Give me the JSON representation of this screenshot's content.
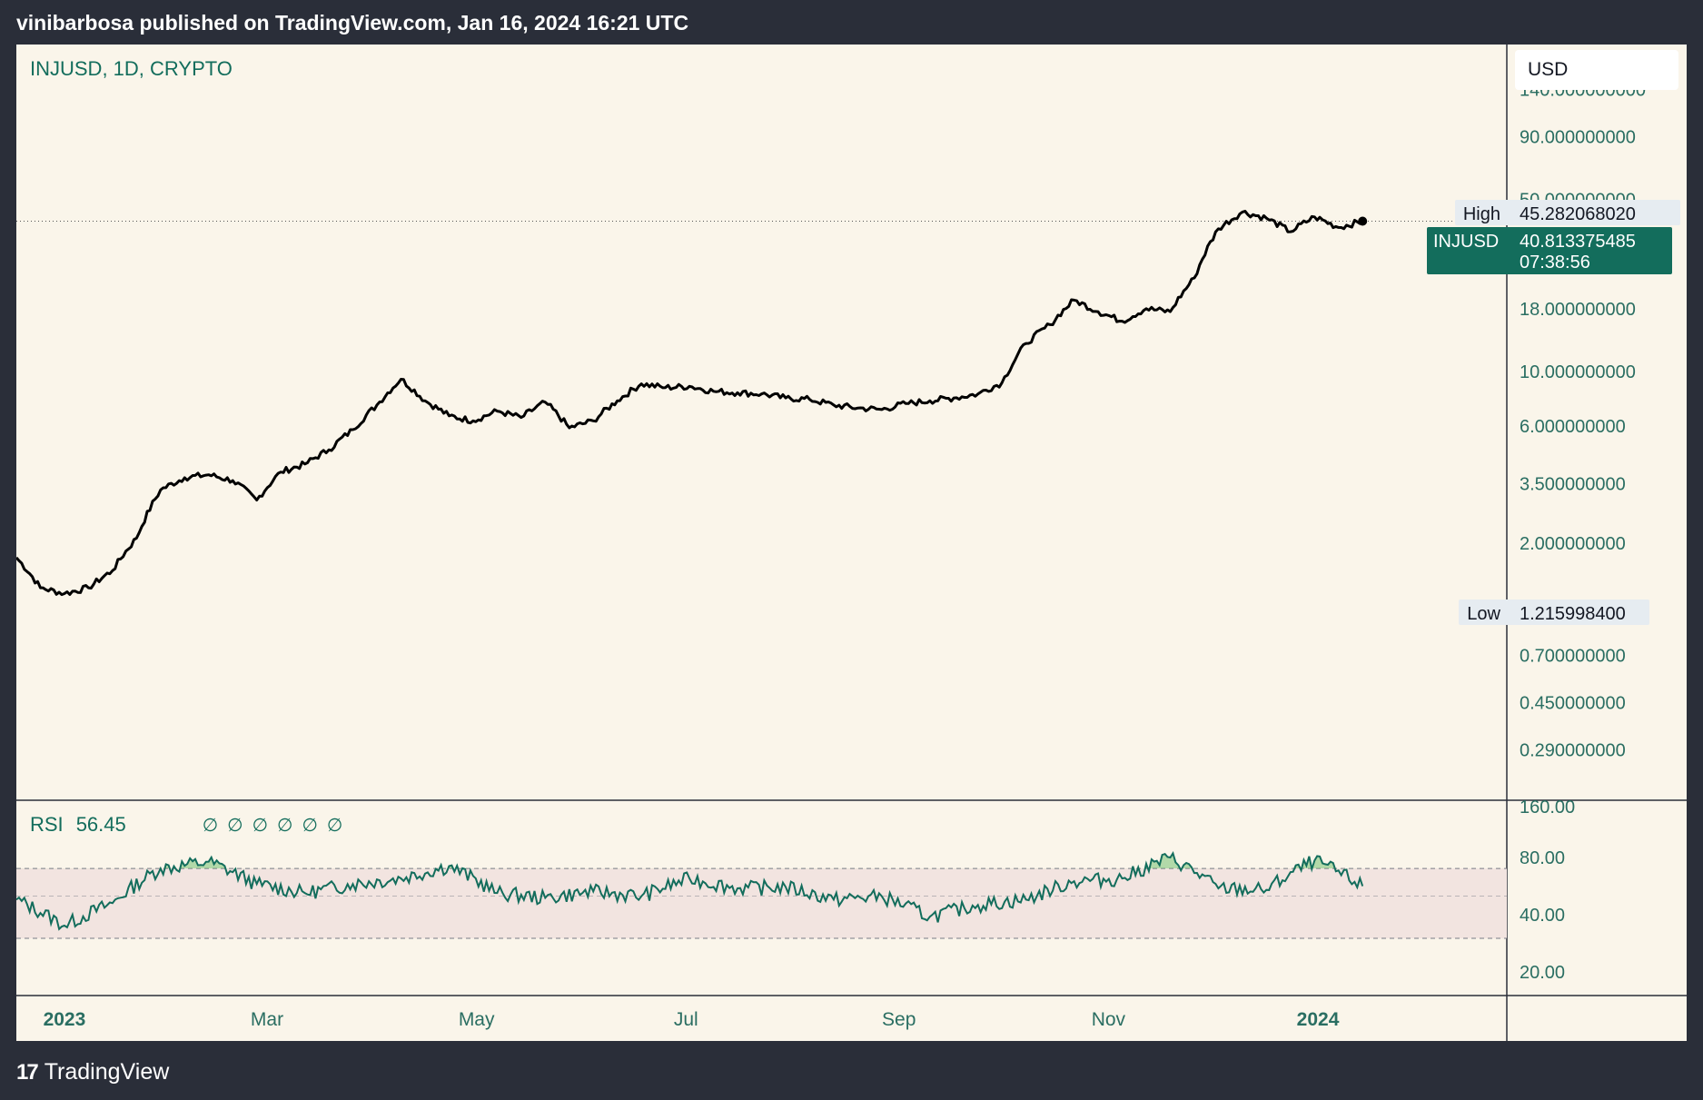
{
  "header": {
    "published": "vinibarbosa published on TradingView.com, Jan 16, 2024 16:21 UTC"
  },
  "legend": {
    "symbol": "INJUSD, 1D, CRYPTO"
  },
  "currency_button": "USD",
  "price_scale": {
    "ticks": [
      "140.000000000",
      "90.000000000",
      "50.000000000",
      "18.000000000",
      "10.000000000",
      "6.000000000",
      "3.500000000",
      "2.000000000",
      "0.700000000",
      "0.450000000",
      "0.290000000"
    ],
    "high_label": "High",
    "high_value": "45.282068020",
    "last_label": "INJUSD",
    "last_value": "40.813375485",
    "countdown": "07:38:56",
    "low_label": "Low",
    "low_value": "1.215998400"
  },
  "rsi": {
    "label": "RSI",
    "value": "56.45",
    "icons": [
      "∅",
      "∅",
      "∅",
      "∅",
      "∅",
      "∅"
    ],
    "ticks": [
      "160.00",
      "80.00",
      "40.00",
      "20.00"
    ]
  },
  "time_axis": {
    "ticks": [
      {
        "label": "2023",
        "bold": true
      },
      {
        "label": "Mar",
        "bold": false
      },
      {
        "label": "May",
        "bold": false
      },
      {
        "label": "Jul",
        "bold": false
      },
      {
        "label": "Sep",
        "bold": false
      },
      {
        "label": "Nov",
        "bold": false
      },
      {
        "label": "2024",
        "bold": true
      }
    ]
  },
  "footer": {
    "brand": "TradingView",
    "logo_mark": "17"
  },
  "colors": {
    "accent": "#136d5c",
    "line": "#000000",
    "rsi_line": "#136d5c",
    "rsi_band": "#f2e4e0",
    "background": "#faf5ea",
    "frame": "#2a2e39"
  },
  "chart_data": [
    {
      "type": "line",
      "title": "INJUSD, 1D, CRYPTO",
      "scale": "log",
      "ylim": [
        0.2,
        180
      ],
      "x": [
        "2022-12-18",
        "2022-12-25",
        "2023-01-01",
        "2023-01-08",
        "2023-01-15",
        "2023-01-22",
        "2023-01-29",
        "2023-02-05",
        "2023-02-12",
        "2023-02-19",
        "2023-02-26",
        "2023-03-05",
        "2023-03-12",
        "2023-03-19",
        "2023-03-26",
        "2023-04-02",
        "2023-04-09",
        "2023-04-16",
        "2023-04-23",
        "2023-04-30",
        "2023-05-07",
        "2023-05-14",
        "2023-05-21",
        "2023-05-28",
        "2023-06-04",
        "2023-06-11",
        "2023-06-18",
        "2023-06-25",
        "2023-07-02",
        "2023-07-09",
        "2023-07-16",
        "2023-07-23",
        "2023-07-30",
        "2023-08-06",
        "2023-08-13",
        "2023-08-20",
        "2023-08-27",
        "2023-09-03",
        "2023-09-10",
        "2023-09-17",
        "2023-09-24",
        "2023-10-01",
        "2023-10-08",
        "2023-10-15",
        "2023-10-22",
        "2023-10-29",
        "2023-11-05",
        "2023-11-12",
        "2023-11-19",
        "2023-11-26",
        "2023-12-03",
        "2023-12-10",
        "2023-12-17",
        "2023-12-24",
        "2023-12-31",
        "2024-01-07",
        "2024-01-14"
      ],
      "series": [
        {
          "name": "INJUSD",
          "values": [
            1.75,
            1.32,
            1.25,
            1.32,
            1.55,
            2.1,
            3.3,
            3.7,
            3.8,
            3.6,
            3.0,
            3.9,
            4.2,
            4.8,
            5.8,
            7.3,
            9.3,
            7.6,
            6.6,
            6.3,
            6.9,
            6.5,
            7.5,
            5.9,
            6.3,
            7.6,
            8.9,
            8.6,
            8.7,
            8.3,
            8.2,
            8.1,
            7.8,
            7.7,
            7.3,
            7.1,
            7.0,
            7.4,
            7.6,
            7.8,
            8.1,
            9.0,
            13.0,
            15.5,
            19.5,
            17.5,
            16.0,
            18.0,
            17.5,
            24.0,
            38.0,
            44.5,
            42.0,
            37.0,
            42.5,
            38.5,
            40.81
          ]
        }
      ],
      "high": 45.28206802,
      "low": 1.2159984,
      "last": 40.813375485
    },
    {
      "type": "line",
      "title": "RSI",
      "ylim": [
        15,
        160
      ],
      "bands": [
        30,
        70
      ],
      "x": [
        "2022-12-18",
        "2023-01-01",
        "2023-01-15",
        "2023-01-29",
        "2023-02-12",
        "2023-02-26",
        "2023-03-12",
        "2023-03-26",
        "2023-04-09",
        "2023-04-23",
        "2023-05-07",
        "2023-05-21",
        "2023-06-04",
        "2023-06-18",
        "2023-07-02",
        "2023-07-16",
        "2023-07-30",
        "2023-08-13",
        "2023-08-27",
        "2023-09-10",
        "2023-09-24",
        "2023-10-08",
        "2023-10-22",
        "2023-11-05",
        "2023-11-19",
        "2023-12-03",
        "2023-12-17",
        "2023-12-31",
        "2024-01-14"
      ],
      "series": [
        {
          "name": "RSI",
          "values": [
            48,
            35,
            46,
            70,
            76,
            58,
            52,
            58,
            62,
            72,
            52,
            49,
            53,
            50,
            62,
            55,
            56,
            48,
            50,
            39,
            45,
            48,
            60,
            62,
            80,
            55,
            54,
            77,
            56.45
          ]
        }
      ]
    }
  ]
}
